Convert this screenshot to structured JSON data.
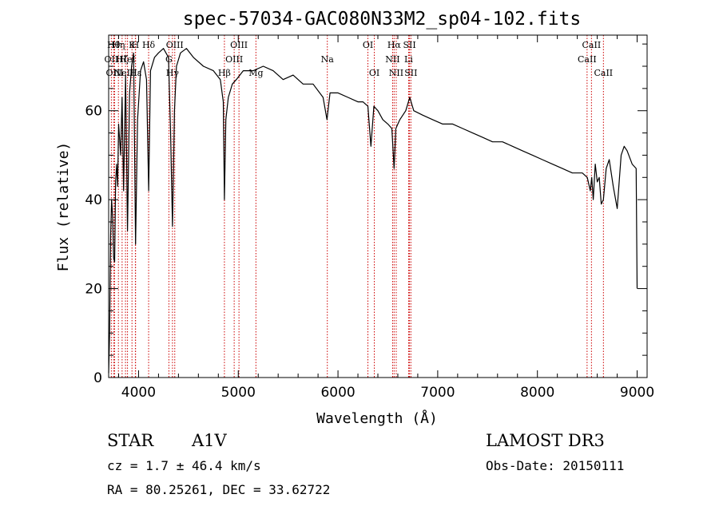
{
  "chart_data": {
    "type": "line",
    "title": "spec-57034-GAC080N33M2_sp04-102.fits",
    "xlabel": "Wavelength (Å)",
    "ylabel": "Flux (relative)",
    "xlim": [
      3700,
      9100
    ],
    "ylim": [
      0,
      77
    ],
    "x_ticks": [
      4000,
      5000,
      6000,
      7000,
      8000,
      9000
    ],
    "x_tick_labels": [
      "4000",
      "5000",
      "6000",
      "7000",
      "8000",
      "9000"
    ],
    "y_ticks": [
      0,
      20,
      40,
      60
    ],
    "y_tick_labels": [
      "0",
      "20",
      "40",
      "60"
    ],
    "grid": false,
    "series": [
      {
        "name": "spectrum",
        "x": [
          3700,
          3710,
          3720,
          3730,
          3740,
          3750,
          3760,
          3770,
          3780,
          3790,
          3800,
          3820,
          3835,
          3850,
          3870,
          3889,
          3910,
          3930,
          3950,
          3970,
          3990,
          4020,
          4050,
          4080,
          4101,
          4120,
          4160,
          4200,
          4250,
          4300,
          4320,
          4340,
          4360,
          4380,
          4420,
          4480,
          4550,
          4650,
          4750,
          4820,
          4850,
          4861,
          4875,
          4900,
          4940,
          4980,
          5050,
          5150,
          5250,
          5350,
          5450,
          5550,
          5650,
          5750,
          5850,
          5890,
          5920,
          6000,
          6100,
          6200,
          6250,
          6300,
          6330,
          6360,
          6400,
          6450,
          6500,
          6540,
          6563,
          6580,
          6620,
          6680,
          6720,
          6760,
          6850,
          6950,
          7050,
          7150,
          7250,
          7350,
          7450,
          7550,
          7650,
          7750,
          7850,
          7950,
          8050,
          8150,
          8250,
          8350,
          8450,
          8500,
          8530,
          8545,
          8560,
          8580,
          8600,
          8620,
          8640,
          8662,
          8690,
          8720,
          8760,
          8800,
          8840,
          8870,
          8900,
          8950,
          8990,
          9000
        ],
        "y": [
          1,
          10,
          32,
          40,
          36,
          27,
          26,
          44,
          48,
          43,
          57,
          50,
          63,
          42,
          68,
          33,
          64,
          70,
          73,
          30,
          58,
          69,
          71,
          67,
          42,
          69,
          72,
          73,
          74,
          72,
          56,
          34,
          60,
          70,
          73,
          74,
          72,
          70,
          69,
          67,
          62,
          40,
          58,
          63,
          66,
          67,
          69,
          69,
          70,
          69,
          67,
          68,
          66,
          66,
          63,
          58,
          64,
          64,
          63,
          62,
          62,
          61,
          52,
          61,
          60,
          58,
          57,
          56,
          47,
          56,
          58,
          60,
          63,
          60,
          59,
          58,
          57,
          57,
          56,
          55,
          54,
          53,
          53,
          52,
          51,
          50,
          49,
          48,
          47,
          46,
          46,
          45,
          42,
          45,
          40,
          48,
          44,
          45,
          39,
          40,
          47,
          49,
          43,
          38,
          50,
          52,
          51,
          48,
          47,
          20
        ]
      }
    ],
    "lines": [
      {
        "wl": 3727,
        "labels": [
          {
            "text": "OII",
            "row": 2
          }
        ]
      },
      {
        "wl": 3750,
        "labels": [
          {
            "text": "Hθ",
            "row": 1
          }
        ]
      },
      {
        "wl": 3760,
        "labels": [
          {
            "text": "OIII",
            "row": 3
          }
        ]
      },
      {
        "wl": 3798,
        "labels": [
          {
            "text": "Hη",
            "row": 1
          }
        ]
      },
      {
        "wl": 3835,
        "labels": [
          {
            "text": "Hζ",
            "row": 2
          }
        ]
      },
      {
        "wl": 3869,
        "labels": [
          {
            "text": "NeIII",
            "row": 3
          }
        ]
      },
      {
        "wl": 3889,
        "labels": [
          {
            "text": "HeI",
            "row": 2
          }
        ]
      },
      {
        "wl": 3934,
        "labels": [
          {
            "text": "K",
            "row": 1
          }
        ]
      },
      {
        "wl": 3968,
        "labels": [
          {
            "text": "H",
            "row": 1
          }
        ]
      },
      {
        "wl": 3970,
        "labels": [
          {
            "text": "Hε",
            "row": 3
          }
        ]
      },
      {
        "wl": 4101,
        "labels": [
          {
            "text": "Hδ",
            "row": 1
          }
        ]
      },
      {
        "wl": 4304,
        "labels": [
          {
            "text": "G",
            "row": 2
          }
        ]
      },
      {
        "wl": 4340,
        "labels": [
          {
            "text": "Hγ",
            "row": 3
          }
        ]
      },
      {
        "wl": 4363,
        "labels": [
          {
            "text": "OIII",
            "row": 1
          }
        ]
      },
      {
        "wl": 4861,
        "labels": [
          {
            "text": "Hβ",
            "row": 3
          }
        ]
      },
      {
        "wl": 4959,
        "labels": [
          {
            "text": "OIII",
            "row": 2
          }
        ]
      },
      {
        "wl": 5007,
        "labels": [
          {
            "text": "OIII",
            "row": 1
          }
        ]
      },
      {
        "wl": 5177,
        "labels": [
          {
            "text": "Mg",
            "row": 3
          }
        ]
      },
      {
        "wl": 5893,
        "labels": [
          {
            "text": "Na",
            "row": 2
          }
        ]
      },
      {
        "wl": 6300,
        "labels": [
          {
            "text": "OI",
            "row": 1
          }
        ]
      },
      {
        "wl": 6364,
        "labels": [
          {
            "text": "OI",
            "row": 3
          }
        ]
      },
      {
        "wl": 6548,
        "labels": [
          {
            "text": "NII",
            "row": 2
          }
        ]
      },
      {
        "wl": 6563,
        "labels": [
          {
            "text": "Hα",
            "row": 1
          }
        ]
      },
      {
        "wl": 6584,
        "labels": [
          {
            "text": "NII",
            "row": 3
          }
        ]
      },
      {
        "wl": 6708,
        "labels": [
          {
            "text": "Li",
            "row": 2
          }
        ]
      },
      {
        "wl": 6717,
        "labels": [
          {
            "text": "SII",
            "row": 1
          }
        ]
      },
      {
        "wl": 6731,
        "labels": [
          {
            "text": "SII",
            "row": 3
          }
        ]
      },
      {
        "wl": 8498,
        "labels": [
          {
            "text": "CaII",
            "row": 2
          }
        ]
      },
      {
        "wl": 8542,
        "labels": [
          {
            "text": "CaII",
            "row": 1
          }
        ]
      },
      {
        "wl": 8662,
        "labels": [
          {
            "text": "CaII",
            "row": 3
          }
        ]
      }
    ],
    "line_color": "#cc0000",
    "series_color": "#000000"
  },
  "info": {
    "object_type": "STAR",
    "subclass": "A1V",
    "survey": "LAMOST DR3",
    "cz_text": "cz = 1.7 ± 46.4 km/s",
    "obs_date": "Obs-Date: 20150111",
    "radec_text": "RA =  80.25261, DEC =  33.62722"
  }
}
